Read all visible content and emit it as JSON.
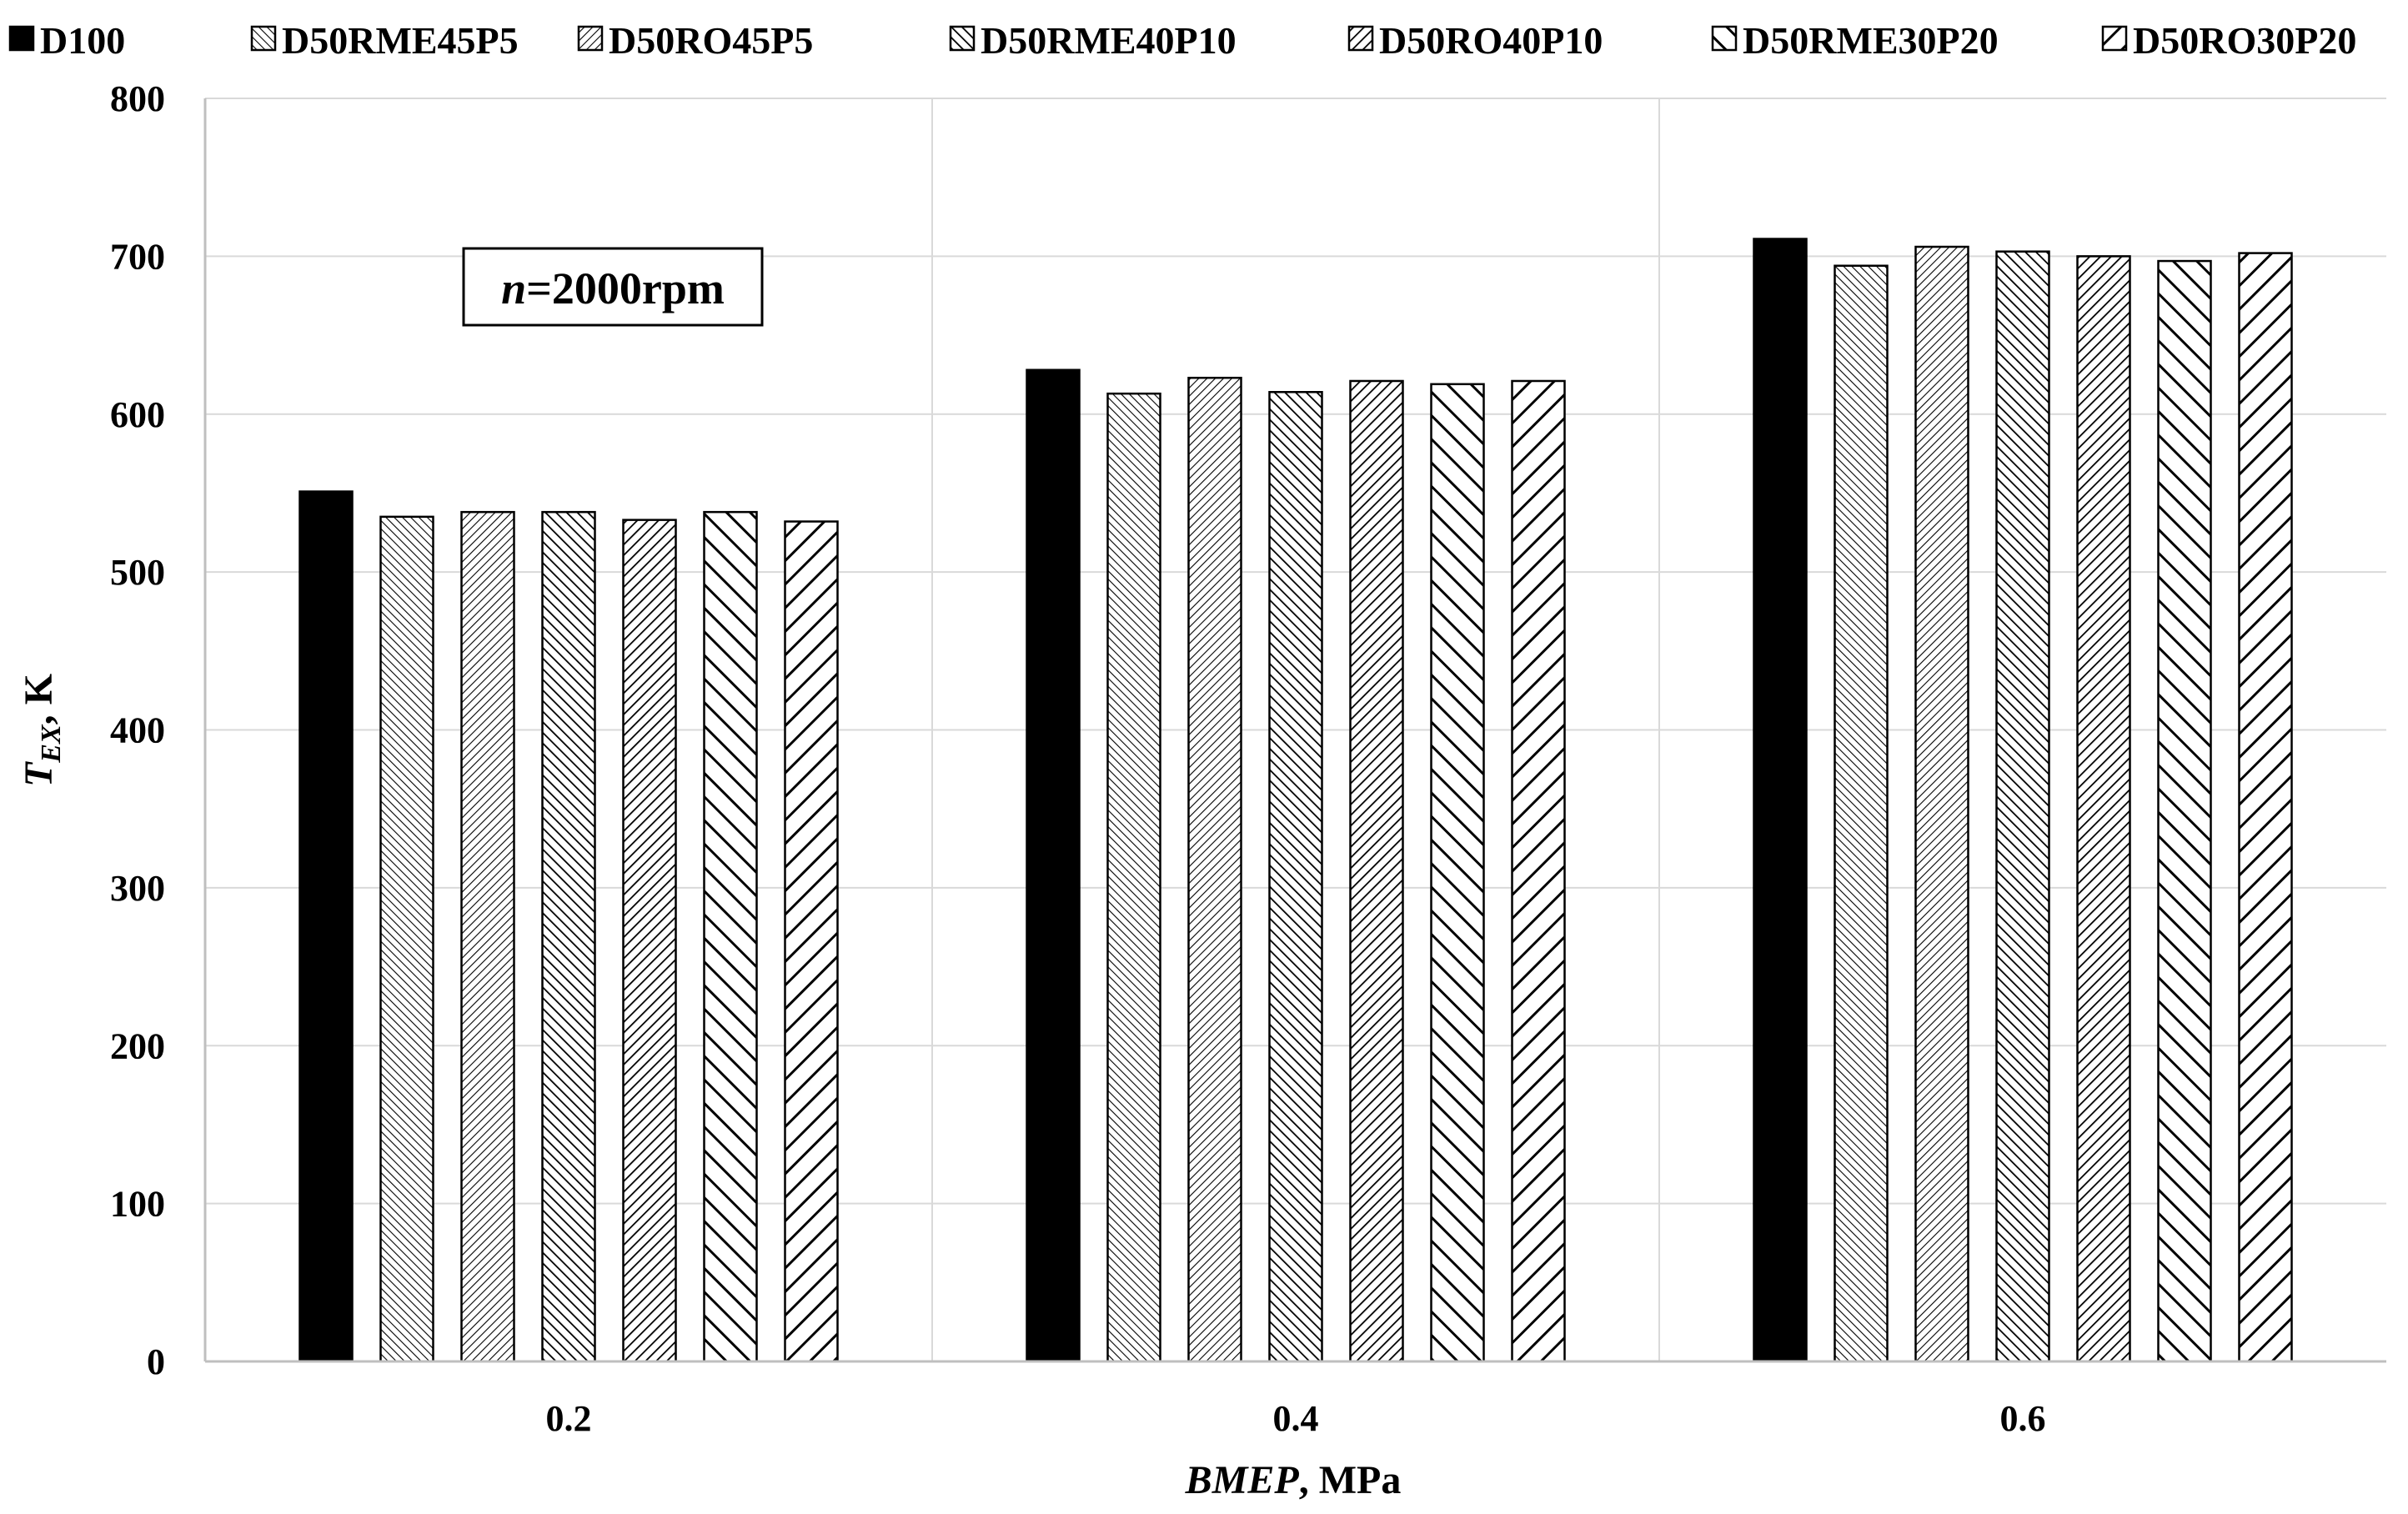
{
  "chart_data": {
    "type": "bar",
    "categories": [
      "0.2",
      "0.4",
      "0.6"
    ],
    "series": [
      {
        "name": "D100",
        "values": [
          551,
          628,
          711
        ],
        "pattern": "solid"
      },
      {
        "name": "D50RME45P5",
        "values": [
          535,
          613,
          694
        ],
        "pattern": "dense-back"
      },
      {
        "name": "D50RO45P5",
        "values": [
          538,
          623,
          706
        ],
        "pattern": "dense-fwd"
      },
      {
        "name": "D50RME40P10",
        "values": [
          538,
          614,
          703
        ],
        "pattern": "mid-back"
      },
      {
        "name": "D50RO40P10",
        "values": [
          533,
          621,
          700
        ],
        "pattern": "mid-fwd"
      },
      {
        "name": "D50RME30P20",
        "values": [
          538,
          619,
          697
        ],
        "pattern": "wide-back"
      },
      {
        "name": "D50RO30P20",
        "values": [
          532,
          621,
          702
        ],
        "pattern": "wide-fwd"
      }
    ],
    "xlabel": {
      "italic": "BMEP",
      "rest": ", MPa"
    },
    "ylabel": {
      "main": "T",
      "subscript": "EX",
      "rest": ", K"
    },
    "ylim": [
      0,
      800
    ],
    "yticks": [
      0,
      100,
      200,
      300,
      400,
      500,
      600,
      700,
      800
    ],
    "grid": true,
    "legend_position": "top",
    "colors": {
      "bar_fill": "#000000",
      "bar_stroke": "#000000",
      "grid": "#d9d9d9",
      "axis": "#bfbfbf"
    }
  },
  "annotation": {
    "italic": "n",
    "rest": "=2000rpm"
  }
}
